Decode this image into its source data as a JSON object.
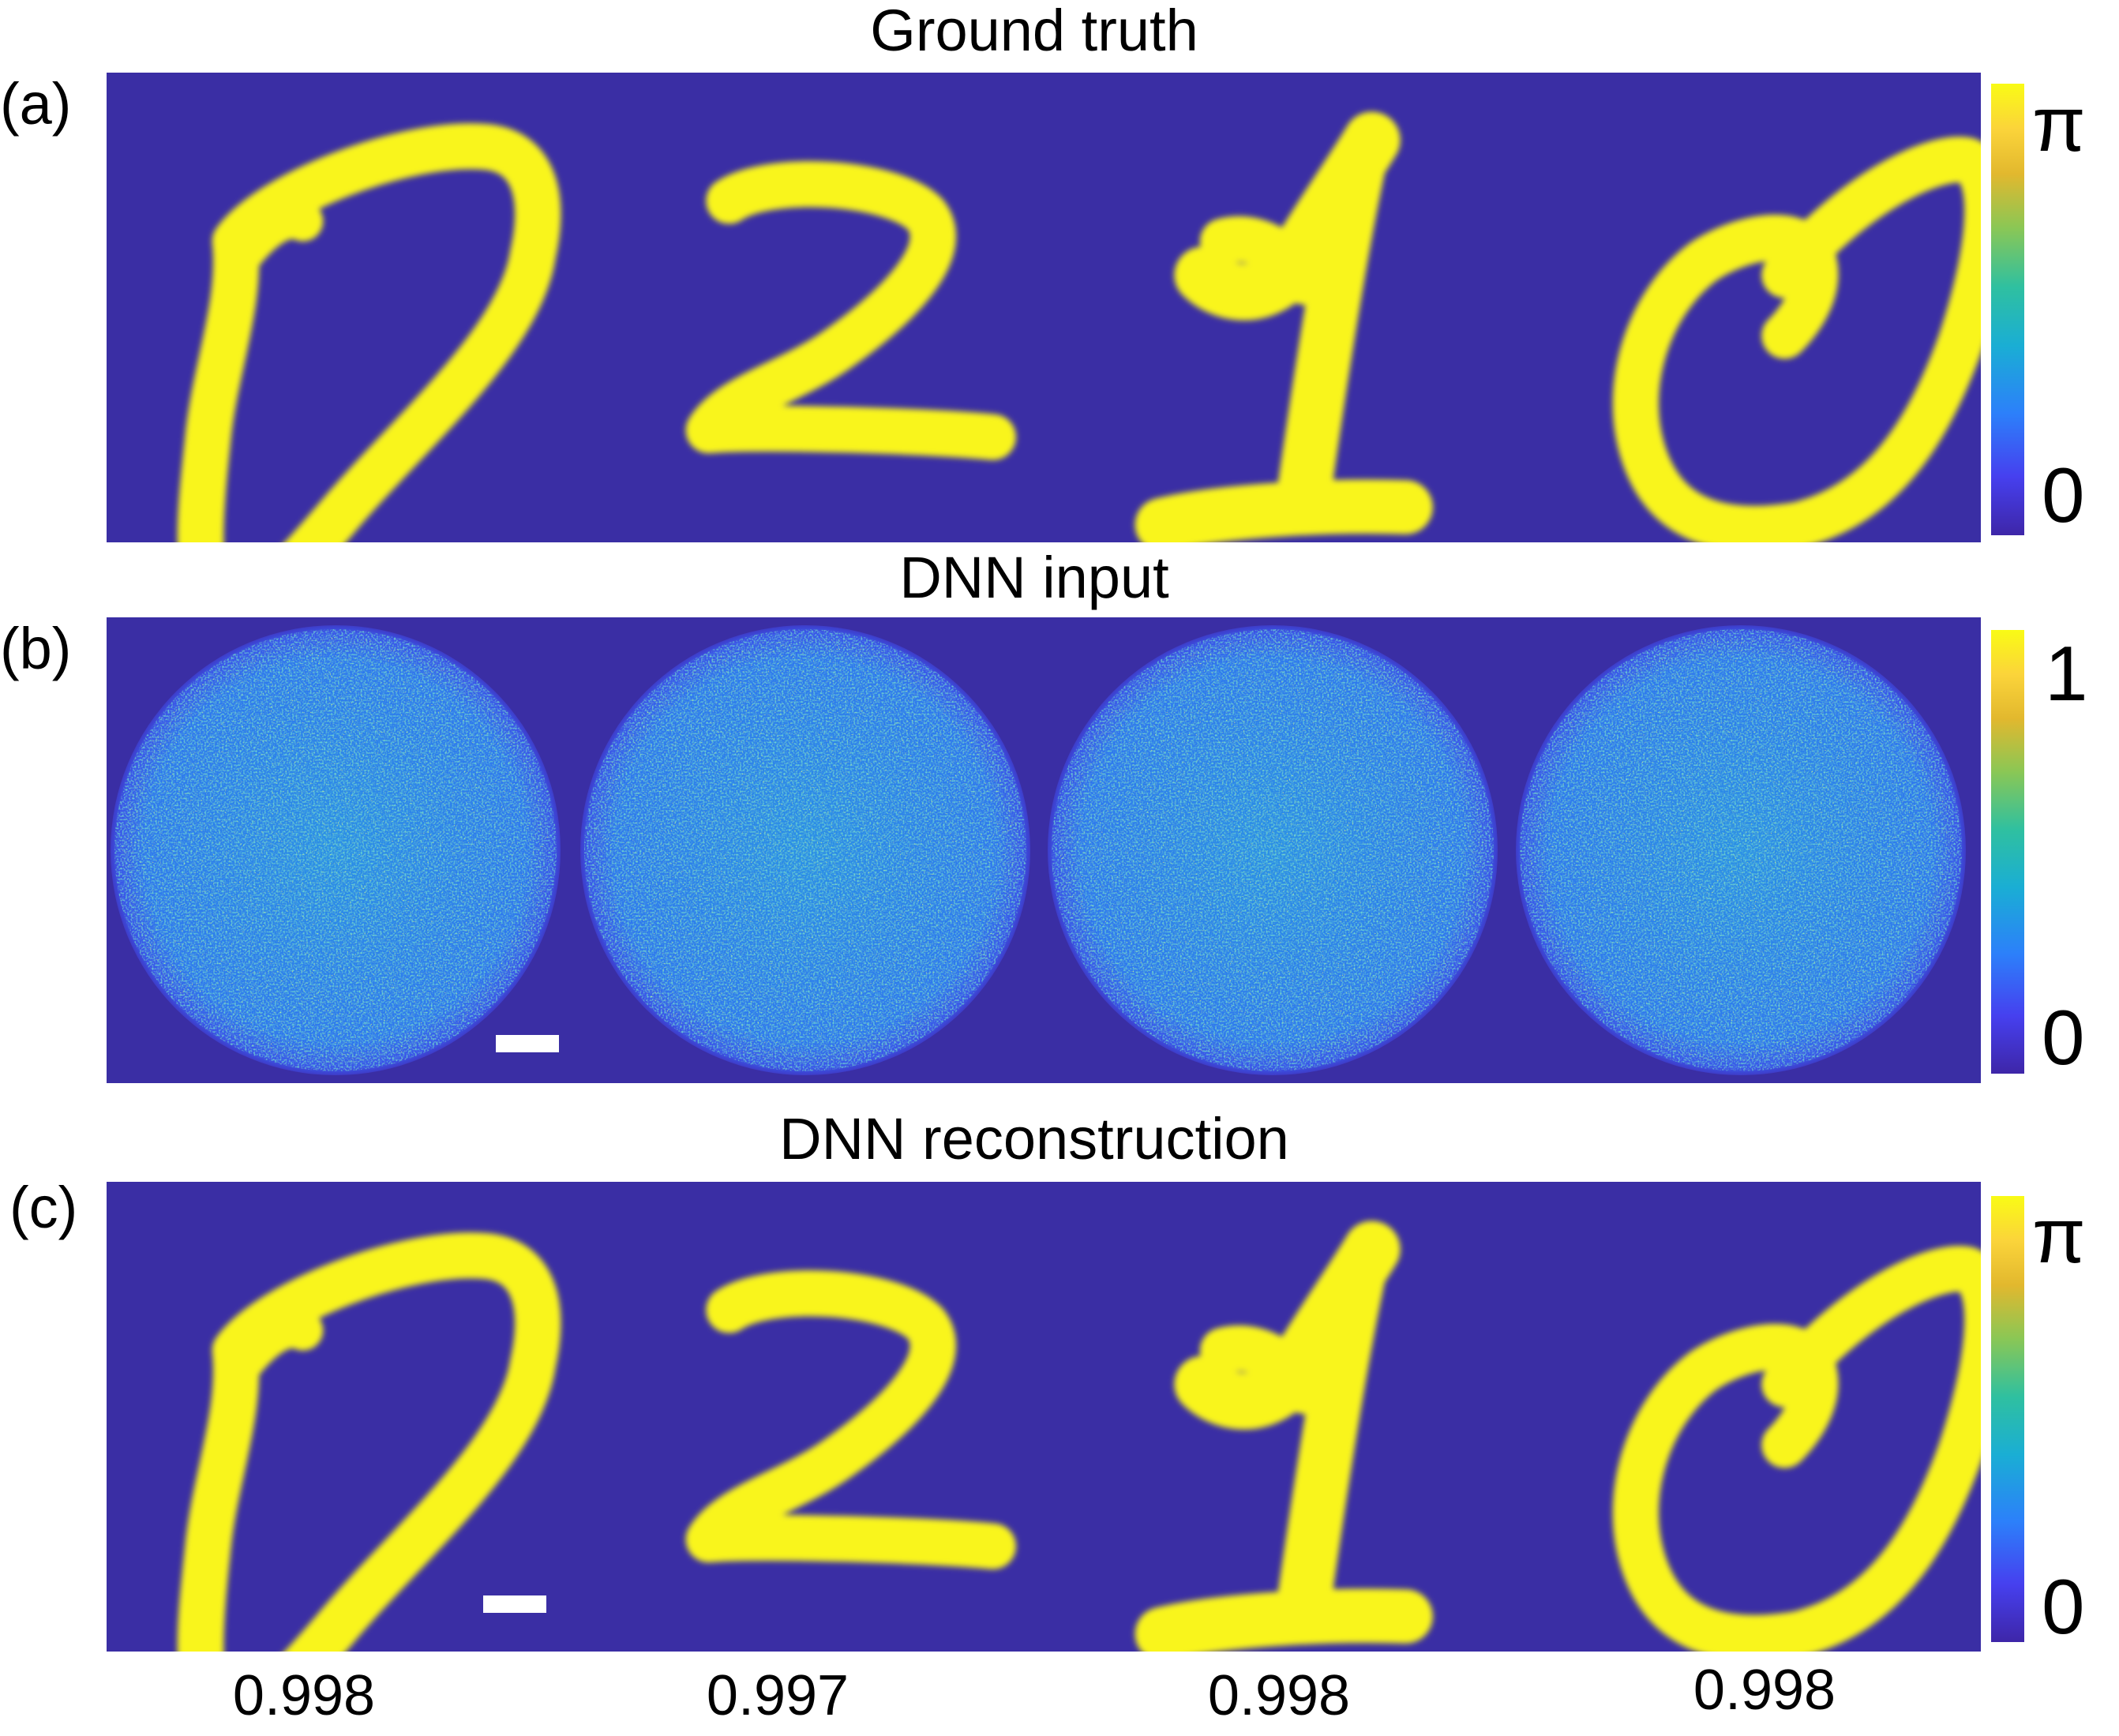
{
  "figure": {
    "panels": [
      {
        "label": "(a)",
        "title": "Ground truth",
        "colorbar": {
          "max_label": "π",
          "min_label": "0"
        },
        "digits": [
          "0",
          "2",
          "1",
          "0"
        ]
      },
      {
        "label": "(b)",
        "title": "DNN input",
        "colorbar": {
          "max_label": "1",
          "min_label": "0"
        }
      },
      {
        "label": "(c)",
        "title": "DNN reconstruction",
        "colorbar": {
          "max_label": "π",
          "min_label": "0"
        },
        "digits": [
          "0",
          "2",
          "1",
          "0"
        ],
        "scores": [
          "0.998",
          "0.997",
          "0.998",
          "0.998"
        ]
      }
    ],
    "colors": {
      "background": "#3a2ea4",
      "digit": "#f9f51a",
      "speckle_base": "#2e6ee8",
      "colormap": [
        "#3e26a8",
        "#4640ef",
        "#2c80fa",
        "#1aaed4",
        "#2fc0a0",
        "#8ac755",
        "#e2b82e",
        "#fbd43a",
        "#f9fb15"
      ]
    }
  }
}
